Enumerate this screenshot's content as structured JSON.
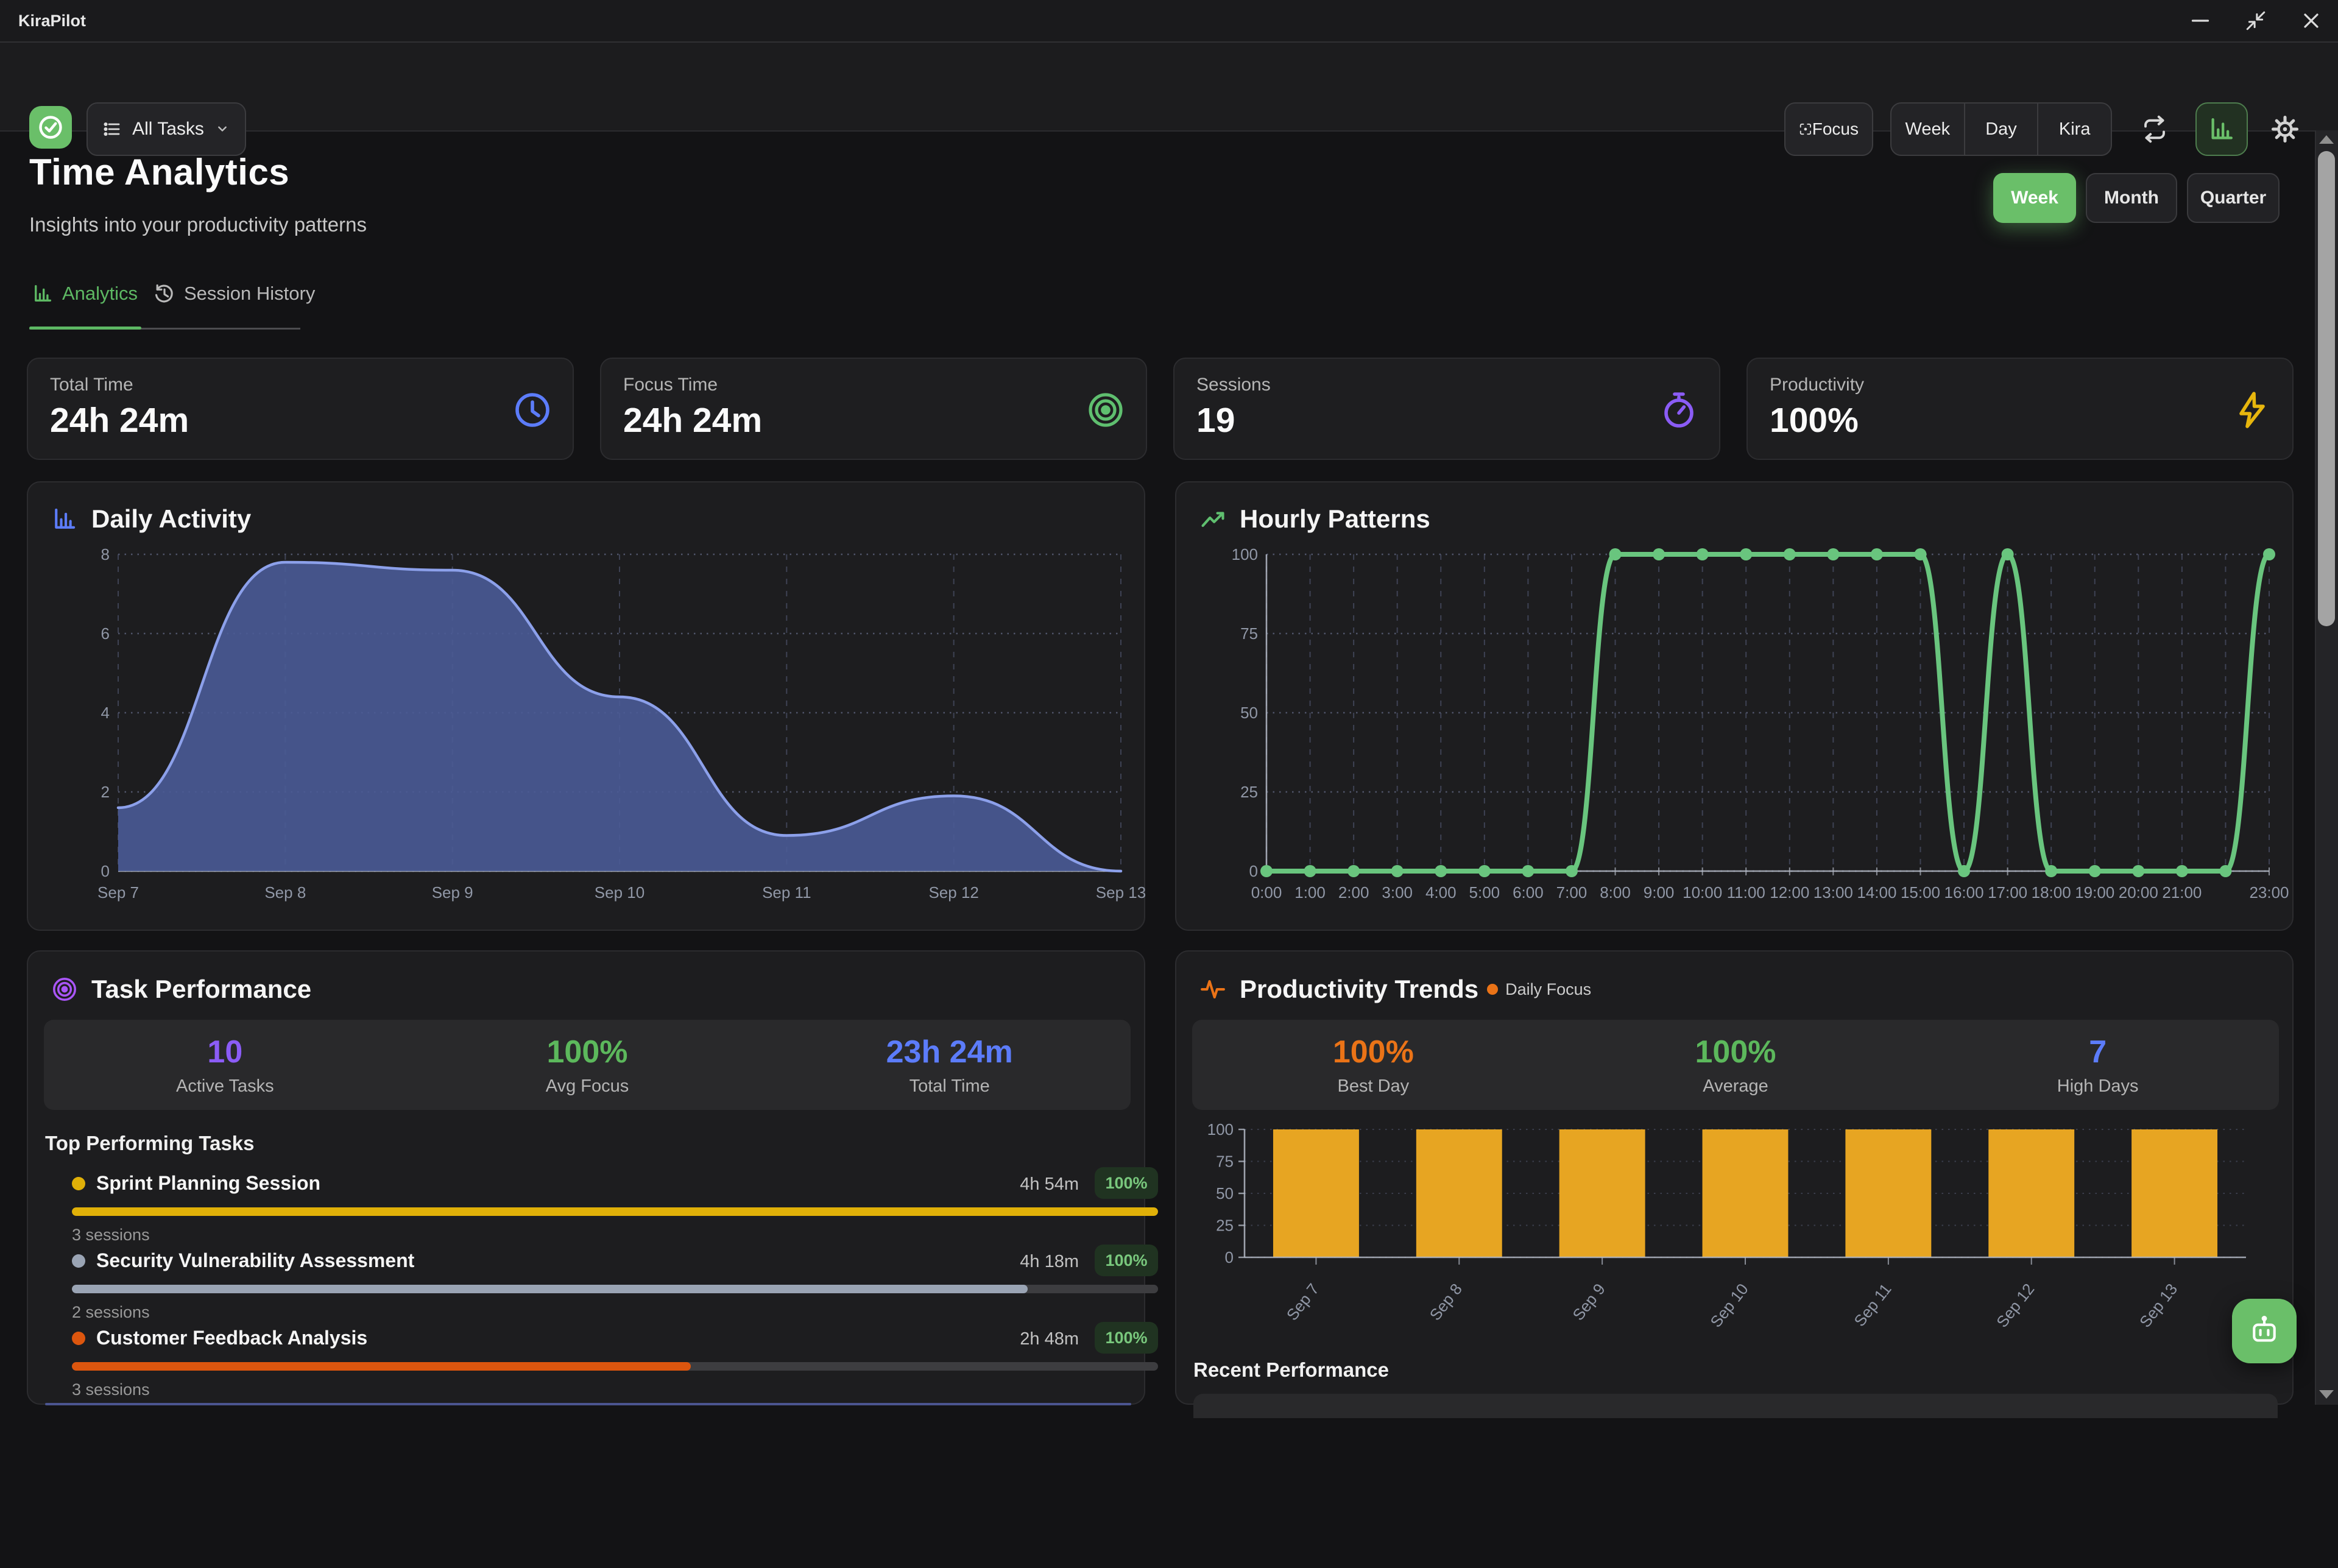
{
  "window": {
    "title": "KiraPilot"
  },
  "toolbar": {
    "logo_color": "#6abf69",
    "task_filter_label": "All Tasks",
    "focus_label": "Focus",
    "views": [
      "Week",
      "Day",
      "Kira"
    ]
  },
  "header": {
    "title": "Time Analytics",
    "subtitle": "Insights into your productivity patterns"
  },
  "range_switcher": {
    "options": [
      "Week",
      "Month",
      "Quarter"
    ],
    "active": "Week",
    "active_color": "#6abf69"
  },
  "tabs": {
    "analytics": "Analytics",
    "session_history": "Session History",
    "active_color": "#5db863"
  },
  "stat_cards": [
    {
      "label": "Total Time",
      "value": "24h 24m",
      "icon": "clock-icon",
      "color": "#5c7cfa"
    },
    {
      "label": "Focus Time",
      "value": "24h 24m",
      "icon": "target-icon",
      "color": "#5fbf6f"
    },
    {
      "label": "Sessions",
      "value": "19",
      "icon": "timer-icon",
      "color": "#8b5cf6"
    },
    {
      "label": "Productivity",
      "value": "100%",
      "icon": "bolt-icon",
      "color": "#e7b60d"
    }
  ],
  "charts": {
    "daily_activity": {
      "title": "Daily Activity",
      "icon_color": "#5c7cfa",
      "type": "area",
      "categories": [
        "Sep 7",
        "Sep 8",
        "Sep 9",
        "Sep 10",
        "Sep 11",
        "Sep 12",
        "Sep 13"
      ],
      "values": [
        1.6,
        7.8,
        7.6,
        4.4,
        0.9,
        1.9,
        0
      ],
      "y_ticks": [
        0,
        2,
        4,
        6,
        8
      ],
      "y_max": 8,
      "line_color": "#8ca0ea",
      "fill_color": "#4a5b96"
    },
    "hourly_patterns": {
      "title": "Hourly Patterns",
      "icon_color": "#5fbf6f",
      "type": "line",
      "x_labels": [
        "0:00",
        "1:00",
        "2:00",
        "3:00",
        "4:00",
        "5:00",
        "6:00",
        "7:00",
        "8:00",
        "9:00",
        "10:00",
        "11:00",
        "12:00",
        "13:00",
        "14:00",
        "15:00",
        "16:00",
        "17:00",
        "18:00",
        "19:00",
        "20:00",
        "21:00",
        "",
        "23:00"
      ],
      "values": [
        0,
        0,
        0,
        0,
        0,
        0,
        0,
        0,
        100,
        100,
        100,
        100,
        100,
        100,
        100,
        100,
        0,
        100,
        0,
        0,
        0,
        0,
        0,
        100
      ],
      "y_ticks": [
        0,
        25,
        50,
        75,
        100
      ],
      "y_max": 100,
      "line_color": "#69c57e"
    }
  },
  "task_performance": {
    "title": "Task Performance",
    "icon_color": "#a955f7",
    "stats": [
      {
        "value": "10",
        "label": "Active Tasks",
        "color": "#8b5cf6"
      },
      {
        "value": "100%",
        "label": "Avg Focus",
        "color": "#5cb85c"
      },
      {
        "value": "23h 24m",
        "label": "Total Time",
        "color": "#5c7cfa"
      }
    ],
    "list_title": "Top Performing Tasks",
    "items": [
      {
        "name": "Sprint Planning Session",
        "time": "4h 54m",
        "focus": "100%",
        "sessions": "3 sessions",
        "color": "#e0b008",
        "bar_pct": 100
      },
      {
        "name": "Security Vulnerability Assessment",
        "time": "4h 18m",
        "focus": "100%",
        "sessions": "2 sessions",
        "color": "#9aa4b4",
        "bar_pct": 88
      },
      {
        "name": "Customer Feedback Analysis",
        "time": "2h 48m",
        "focus": "100%",
        "sessions": "3 sessions",
        "color": "#dc560e",
        "bar_pct": 57
      }
    ]
  },
  "productivity_trends": {
    "title": "Productivity Trends",
    "icon_color": "#ea7317",
    "legend_label": "Daily Focus",
    "legend_color": "#ea7317",
    "stats": [
      {
        "value": "100%",
        "label": "Best Day",
        "color": "#ea7317"
      },
      {
        "value": "100%",
        "label": "Average",
        "color": "#5cb85c"
      },
      {
        "value": "7",
        "label": "High Days",
        "color": "#5c7cfa"
      }
    ],
    "bars": {
      "type": "bar",
      "categories": [
        "Sep 7",
        "Sep 8",
        "Sep 9",
        "Sep 10",
        "Sep 11",
        "Sep 12",
        "Sep 13"
      ],
      "values": [
        100,
        100,
        100,
        100,
        100,
        100,
        100
      ],
      "y_ticks": [
        0,
        25,
        50,
        75,
        100
      ],
      "y_max": 100,
      "bar_color": "#e7a522"
    },
    "footer_title": "Recent Performance"
  },
  "fab": {
    "color": "#6abf69"
  }
}
